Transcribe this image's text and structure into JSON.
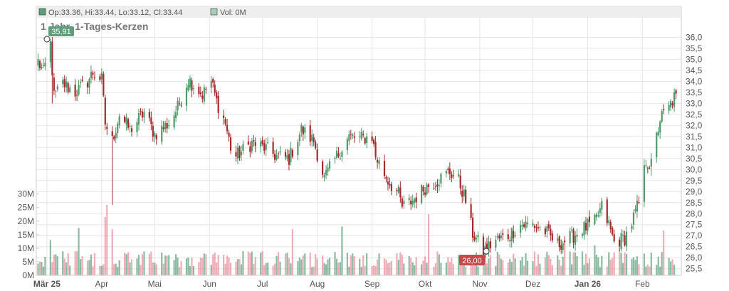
{
  "legend": {
    "ohlc": "Op:33.36, Hi:33.44, Lo:33.12, Cl:33.44",
    "volume": "Vol: 0M",
    "up_color": "#5b9e7a",
    "down_color": "#e48b98"
  },
  "chart_data": [
    {
      "type": "candlestick",
      "title": "1 Jahr, 1-Tages-Kerzen",
      "ylim": [
        25.2,
        36.4
      ],
      "y_ticks": [
        "36,0",
        "35,5",
        "35,0",
        "34,5",
        "34,0",
        "33,5",
        "33,0",
        "32,5",
        "32,0",
        "31,5",
        "31,0",
        "30,5",
        "30,0",
        "29,5",
        "29,0",
        "28,5",
        "28,0",
        "27,5",
        "27,0",
        "26,5",
        "26,0",
        "25,5"
      ],
      "y_tick_values": [
        36.0,
        35.5,
        35.0,
        34.5,
        34.0,
        33.5,
        33.0,
        32.5,
        32.0,
        31.5,
        31.0,
        30.5,
        30.0,
        29.5,
        29.0,
        28.5,
        28.0,
        27.5,
        27.0,
        26.5,
        26.0,
        25.5
      ],
      "x_ticks": [
        "Mär 25",
        "Apr",
        "Mai",
        "Jun",
        "Jul",
        "Aug",
        "Sep",
        "Okt",
        "Nov",
        "Dez",
        "Jan 26",
        "Feb"
      ],
      "x_ticks_bold": [
        "Mär 25",
        "Jan 26"
      ],
      "grid": true,
      "high_label": "35,91",
      "low_label": "26,00",
      "high": 35.91,
      "low": 26.0,
      "last_close": 33.44,
      "up_color": "#4e9a6b",
      "down_color": "#a52a2a",
      "anchors": [
        [
          "2025-02-24",
          34.9
        ],
        [
          "2025-02-27",
          34.4
        ],
        [
          "2025-03-03",
          35.7
        ],
        [
          "2025-03-05",
          33.3
        ],
        [
          "2025-03-10",
          33.9
        ],
        [
          "2025-03-17",
          33.5
        ],
        [
          "2025-03-24",
          34.0
        ],
        [
          "2025-03-27",
          34.4
        ],
        [
          "2025-04-01",
          34.1
        ],
        [
          "2025-04-03",
          32.1
        ],
        [
          "2025-04-07",
          31.3
        ],
        [
          "2025-04-11",
          32.5
        ],
        [
          "2025-04-17",
          31.8
        ],
        [
          "2025-04-25",
          32.6
        ],
        [
          "2025-05-01",
          31.6
        ],
        [
          "2025-05-09",
          32.1
        ],
        [
          "2025-05-14",
          32.8
        ],
        [
          "2025-05-20",
          34.1
        ],
        [
          "2025-05-28",
          33.4
        ],
        [
          "2025-06-02",
          34.0
        ],
        [
          "2025-06-05",
          33.1
        ],
        [
          "2025-06-10",
          32.1
        ],
        [
          "2025-06-13",
          31.0
        ],
        [
          "2025-06-16",
          30.6
        ],
        [
          "2025-06-19",
          30.8
        ],
        [
          "2025-06-25",
          31.2
        ],
        [
          "2025-07-02",
          31.0
        ],
        [
          "2025-07-09",
          30.6
        ],
        [
          "2025-07-16",
          30.5
        ],
        [
          "2025-07-23",
          31.8
        ],
        [
          "2025-07-30",
          31.3
        ],
        [
          "2025-08-05",
          29.6
        ],
        [
          "2025-08-12",
          30.6
        ],
        [
          "2025-08-19",
          31.5
        ],
        [
          "2025-08-25",
          31.4
        ],
        [
          "2025-09-01",
          31.5
        ],
        [
          "2025-09-03",
          30.6
        ],
        [
          "2025-09-10",
          29.5
        ],
        [
          "2025-09-16",
          28.9
        ],
        [
          "2025-09-18",
          28.3
        ],
        [
          "2025-09-24",
          28.6
        ],
        [
          "2025-10-01",
          29.2
        ],
        [
          "2025-10-08",
          29.5
        ],
        [
          "2025-10-15",
          29.9
        ],
        [
          "2025-10-20",
          29.5
        ],
        [
          "2025-10-24",
          28.6
        ],
        [
          "2025-10-28",
          27.1
        ],
        [
          "2025-11-03",
          26.3
        ],
        [
          "2025-11-10",
          26.8
        ],
        [
          "2025-11-17",
          27.0
        ],
        [
          "2025-11-24",
          27.5
        ],
        [
          "2025-12-01",
          27.5
        ],
        [
          "2025-12-08",
          27.2
        ],
        [
          "2025-12-15",
          26.6
        ],
        [
          "2025-12-22",
          26.9
        ],
        [
          "2025-12-29",
          27.3
        ],
        [
          "2026-01-05",
          27.6
        ],
        [
          "2026-01-09",
          28.3
        ],
        [
          "2026-01-13",
          27.5
        ],
        [
          "2026-01-16",
          26.7
        ],
        [
          "2026-01-22",
          26.9
        ],
        [
          "2026-01-26",
          27.6
        ],
        [
          "2026-01-30",
          28.5
        ],
        [
          "2026-02-03",
          30.4
        ],
        [
          "2026-02-06",
          30.2
        ],
        [
          "2026-02-11",
          32.3
        ],
        [
          "2026-02-16",
          32.8
        ],
        [
          "2026-02-20",
          33.44
        ]
      ]
    },
    {
      "type": "bar",
      "title": "Volume",
      "ylim": [
        0,
        32
      ],
      "y_ticks": [
        "30M",
        "25M",
        "20M",
        "15M",
        "10M",
        "5M",
        "0M"
      ],
      "y_tick_values": [
        30,
        25,
        20,
        15,
        10,
        5,
        0
      ],
      "spikes": [
        [
          "2025-03-03",
          13
        ],
        [
          "2025-03-19",
          17.5
        ],
        [
          "2025-04-03",
          21.5
        ],
        [
          "2025-04-04",
          26
        ],
        [
          "2025-04-07",
          17
        ],
        [
          "2025-07-18",
          17
        ],
        [
          "2025-08-15",
          18
        ],
        [
          "2025-10-03",
          22.5
        ],
        [
          "2025-12-19",
          11
        ],
        [
          "2026-01-05",
          11
        ],
        [
          "2026-01-19",
          9.5
        ],
        [
          "2026-02-13",
          16.5
        ]
      ]
    }
  ]
}
